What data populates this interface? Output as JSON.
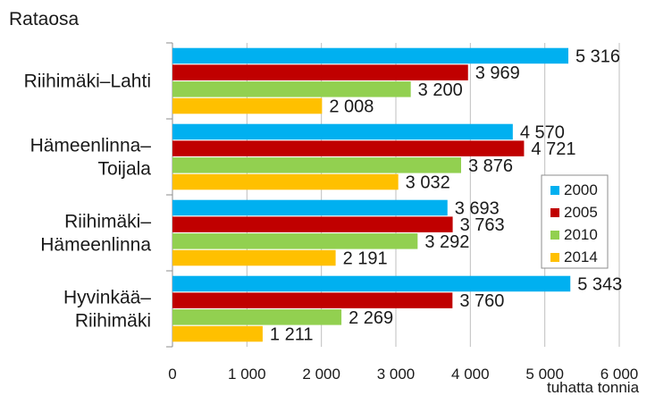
{
  "chart_data": {
    "type": "bar",
    "orientation": "horizontal",
    "title": "Rataosa",
    "xlabel": "tuhatta tonnia",
    "ylabel": "",
    "categories": [
      [
        "Riihimäki–Lahti"
      ],
      [
        "Hämeenlinna–",
        "Toijala"
      ],
      [
        "Riihimäki–",
        "Hämeenlinna"
      ],
      [
        "Hyvinkää–",
        "Riihimäki"
      ]
    ],
    "series": [
      {
        "name": "2000",
        "color": "#00B0F0",
        "values": [
          5316,
          4570,
          3693,
          5343
        ],
        "labels": [
          "5 316",
          "4 570",
          "3 693",
          "5 343"
        ]
      },
      {
        "name": "2005",
        "color": "#C00000",
        "values": [
          3969,
          4721,
          3763,
          3760
        ],
        "labels": [
          "3 969",
          "4 721",
          "3 763",
          "3 760"
        ]
      },
      {
        "name": "2010",
        "color": "#92D050",
        "values": [
          3200,
          3876,
          3292,
          2269
        ],
        "labels": [
          "3 200",
          "3 876",
          "3 292",
          "2 269"
        ]
      },
      {
        "name": "2014",
        "color": "#FFC000",
        "values": [
          2008,
          3032,
          2191,
          1211
        ],
        "labels": [
          "2 008",
          "3 032",
          "2 191",
          "1 211"
        ]
      }
    ],
    "xlim": [
      0,
      6000
    ],
    "xticks": [
      0,
      1000,
      2000,
      3000,
      4000,
      5000,
      6000
    ],
    "xtick_labels": [
      "0",
      "1 000",
      "2 000",
      "3 000",
      "4 000",
      "5 000",
      "6 000"
    ],
    "grid": true,
    "legend_position": "right"
  }
}
